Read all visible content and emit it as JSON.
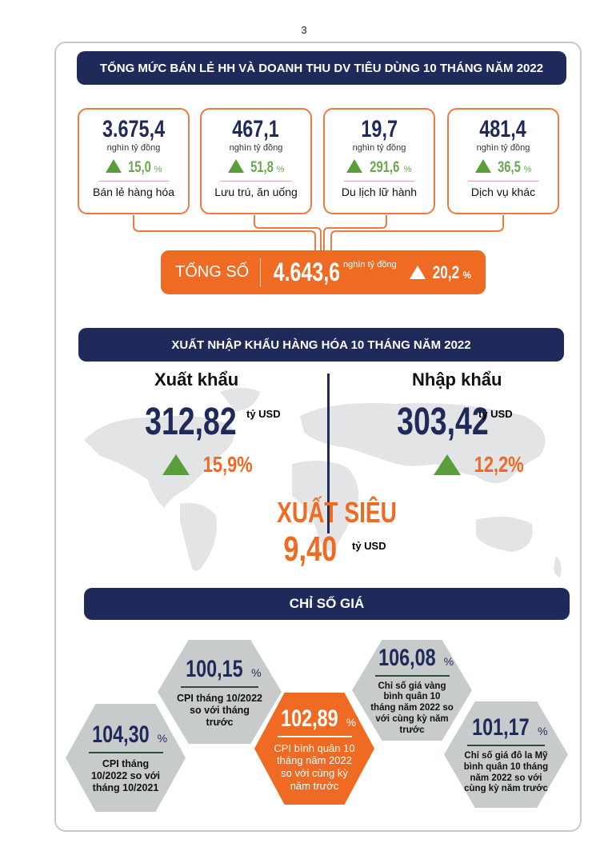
{
  "page_number": "3",
  "retail": {
    "title": "TỔNG MỨC BÁN LẺ HH VÀ DOANH THU DV TIÊU DÙNG 10 THÁNG NĂM 2022",
    "cards": [
      {
        "value": "3.675,4",
        "unit": "nghìn tỷ đồng",
        "growth": "15,0",
        "label": "Bán lẻ hàng hóa"
      },
      {
        "value": "467,1",
        "unit": "nghìn tỷ đồng",
        "growth": "51,8",
        "label": "Lưu trú, ăn uống"
      },
      {
        "value": "19,7",
        "unit": "nghìn tỷ đồng",
        "growth": "291,6",
        "label": "Du lịch lữ hành"
      },
      {
        "value": "481,4",
        "unit": "nghìn tỷ đồng",
        "growth": "36,5",
        "label": "Dịch vụ khác"
      }
    ],
    "total": {
      "label": "TỔNG SỐ",
      "value": "4.643,6",
      "unit": "nghìn tỷ đồng",
      "growth": "20,2"
    },
    "pct": "%"
  },
  "trade": {
    "title": "XUẤT NHẬP KHẨU HÀNG HÓA 10 THÁNG NĂM 2022",
    "export": {
      "label": "Xuất khẩu",
      "value": "312,82",
      "unit": "tỷ USD",
      "growth": "15,9%"
    },
    "import": {
      "label": "Nhập khẩu",
      "value": "303,42",
      "unit": "tỷ USD",
      "growth": "12,2%"
    },
    "surplus": {
      "label": "XUẤT SIÊU",
      "value": "9,40",
      "unit": "tỷ USD"
    }
  },
  "prices": {
    "title": "CHỈ SỐ GIÁ",
    "pct": "%",
    "items": [
      {
        "value": "104,30",
        "text": "CPI tháng 10/2022 so với tháng 10/2021"
      },
      {
        "value": "100,15",
        "text": "CPI tháng 10/2022 so với tháng trước"
      },
      {
        "value": "102,89",
        "text": "CPI bình quân 10 tháng năm 2022 so với cùng kỳ năm trước"
      },
      {
        "value": "106,08",
        "text": "Chỉ số giá vàng bình quân 10 tháng năm 2022 so với cùng kỳ năm trước"
      },
      {
        "value": "101,17",
        "text": "Chỉ số giá đô la Mỹ bình quân 10 tháng năm 2022 so với cùng kỳ năm trước"
      }
    ]
  },
  "colors": {
    "navy": "#1f2a5a",
    "orange": "#ef6a23",
    "green": "#5a9e3a",
    "gray": "#c8cbcc"
  }
}
